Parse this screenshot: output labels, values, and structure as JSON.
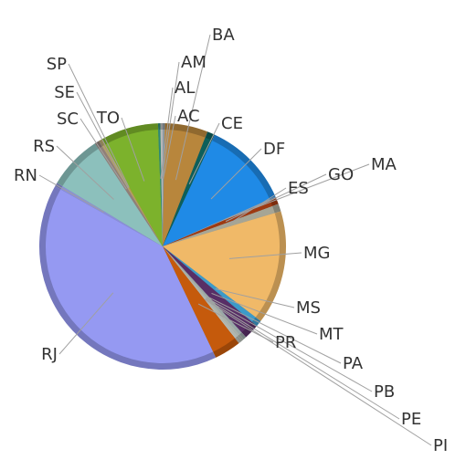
{
  "chart_data": {
    "type": "pie",
    "title": "",
    "start_angle_deg": -90,
    "slices": [
      {
        "label": "AC",
        "value": 0.3,
        "color": "#8f9aa3"
      },
      {
        "label": "BA",
        "value": 5.6,
        "color": "#b8863c"
      },
      {
        "label": "CE",
        "value": 1.0,
        "color": "#0d5f5a"
      },
      {
        "label": "DF",
        "value": 11.4,
        "color": "#1f8ae6"
      },
      {
        "label": "MA",
        "value": 0.2,
        "color": "#8fa0b0"
      },
      {
        "label": "GO",
        "value": 0.8,
        "color": "#9e3a12"
      },
      {
        "label": "ES",
        "value": 1.0,
        "color": "#a6a595"
      },
      {
        "label": "MG",
        "value": 14.9,
        "color": "#f0b968"
      },
      {
        "label": "MS",
        "value": 0.8,
        "color": "#3c9ac9"
      },
      {
        "label": "MT",
        "value": 2.0,
        "color": "#582e66"
      },
      {
        "label": "PA",
        "value": 0.4,
        "color": "#9aa8a8"
      },
      {
        "label": "PB",
        "value": 0.3,
        "color": "#aab2aa"
      },
      {
        "label": "PE",
        "value": 0.3,
        "color": "#b0b7b0"
      },
      {
        "label": "PI",
        "value": 0.2,
        "color": "#b6bcb6"
      },
      {
        "label": "PR",
        "value": 3.5,
        "color": "#c55a0c"
      },
      {
        "label": "RJ",
        "value": 40.0,
        "color": "#9599f2"
      },
      {
        "label": "RN",
        "value": 0.5,
        "color": "#8a8fd8"
      },
      {
        "label": "RS",
        "value": 7.1,
        "color": "#8cc0bc"
      },
      {
        "label": "SC",
        "value": 0.6,
        "color": "#907f78"
      },
      {
        "label": "SE",
        "value": 0.3,
        "color": "#b0a070"
      },
      {
        "label": "SP",
        "value": 0.2,
        "color": "#b7a040"
      },
      {
        "label": "TO",
        "value": 7.5,
        "color": "#7cb22c"
      },
      {
        "label": "AL",
        "value": 0.3,
        "color": "#2f8a76"
      },
      {
        "label": "AM",
        "value": 0.3,
        "color": "#b7b7b7"
      }
    ]
  }
}
